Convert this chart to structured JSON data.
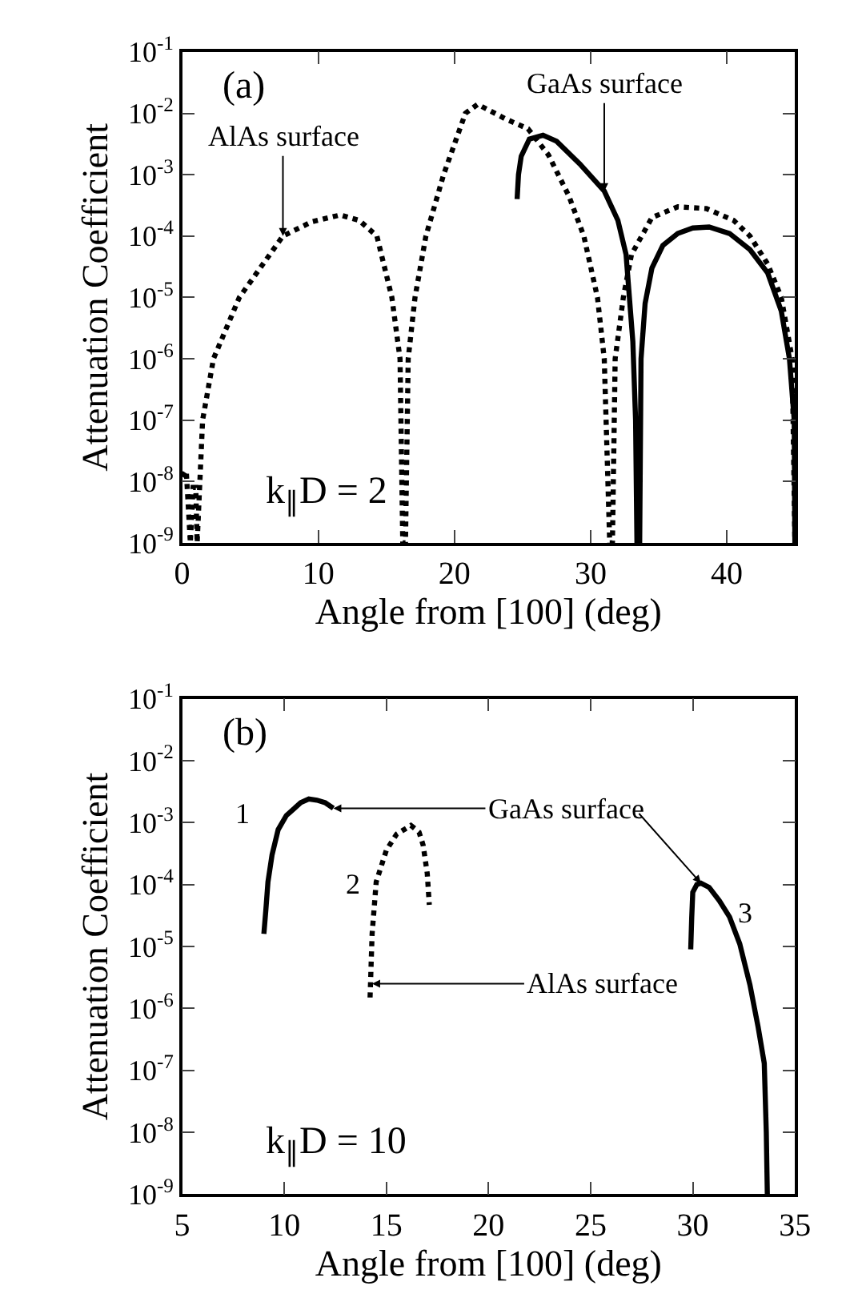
{
  "chart_data": [
    {
      "type": "line",
      "xlabel": "Angle from [100] (deg)",
      "ylabel": "Attenuation Coefficient",
      "log": "y",
      "xlim": [
        0,
        45
      ],
      "xticks": [
        0,
        10,
        20,
        30,
        40
      ],
      "ylim": [
        1e-09,
        0.1
      ],
      "yticks": [
        {
          "value": 1e-09,
          "label": "10$^{-9}$"
        },
        {
          "value": 1e-08,
          "label": "10$^{-8}$"
        },
        {
          "value": 1e-07,
          "label": "10$^{-7}$"
        },
        {
          "value": 1e-06,
          "label": "10$^{-6}$"
        },
        {
          "value": 1e-05,
          "label": "10$^{-5}$"
        },
        {
          "value": 0.0001,
          "label": "10$^{-4}$"
        },
        {
          "value": 0.001,
          "label": "10$^{-3}$"
        },
        {
          "value": 0.01,
          "label": "10$^{-2}$"
        },
        {
          "value": 0.1,
          "label": "10$^{-1}$"
        }
      ],
      "grid": false,
      "series": [
        {
          "color": "#000000",
          "line_style": "dotted",
          "x": [
            0,
            0.3,
            0.6,
            0.8,
            1.0,
            1.1,
            1.3,
            1.5,
            2.3,
            4.2,
            7.4,
            9.5,
            11.6,
            13.0,
            14.3,
            15.4,
            16.0,
            16.2,
            16.4,
            16.6,
            17.1,
            17.9,
            19.2,
            20.8,
            21.7,
            23.8,
            25.4,
            26.9,
            28.4,
            29.5,
            30.5,
            31.0,
            31.4,
            31.6,
            31.8,
            32.4,
            33.0,
            34.5,
            36.4,
            38.5,
            40.5,
            41.7,
            43.0,
            44.0,
            44.8,
            45.0
          ],
          "values": [
            1.2e-08,
            1.5e-08,
            1e-09,
            8e-09,
            8e-09,
            1e-09,
            1e-08,
            1e-07,
            1e-06,
            1e-05,
            0.0001,
            0.00017,
            0.00022,
            0.00018,
            0.0001,
            1e-05,
            1e-06,
            1e-09,
            1e-09,
            1e-06,
            1e-05,
            0.0001,
            0.001,
            0.01,
            0.014,
            0.008,
            0.0056,
            0.0021,
            0.00045,
            0.0001,
            1e-05,
            1e-06,
            1e-09,
            1e-09,
            1e-06,
            1e-05,
            5e-05,
            0.0002,
            0.0003,
            0.00028,
            0.00018,
            0.0001,
            3.5e-05,
            1e-05,
            1e-06,
            1e-09
          ]
        },
        {
          "color": "#000000",
          "line_style": "solid",
          "x": [
            24.6,
            24.7,
            24.9,
            25.5,
            26.5,
            27.5,
            29.2,
            31.0,
            32.0,
            32.6,
            33.1,
            33.3,
            33.4,
            33.6,
            33.7,
            34.0,
            34.5,
            35.3,
            36.4,
            37.5,
            38.7,
            40.2,
            41.7,
            43.0,
            44.0,
            44.6,
            44.95,
            45.0
          ],
          "values": [
            0.0004,
            0.001,
            0.002,
            0.0038,
            0.0044,
            0.0035,
            0.0015,
            0.00054,
            0.00018,
            5e-05,
            1.9e-06,
            1e-07,
            1e-09,
            1e-09,
            1e-06,
            8e-06,
            3e-05,
            7e-05,
            0.00011,
            0.000135,
            0.00014,
            0.00011,
            6e-05,
            2.5e-05,
            6e-06,
            1e-06,
            1e-07,
            1e-09
          ]
        }
      ],
      "annotations": [
        "(a)",
        {
          "text": "AlAs surface",
          "x": 7.4,
          "y": 0.0001
        },
        {
          "text": "GaAs surface",
          "x": 31.0,
          "y": 0.00054
        },
        "k$_{∥}$D = 2"
      ]
    },
    {
      "type": "line",
      "xlabel": "Angle from [100] (deg)",
      "ylabel": "Attenuation Coefficient",
      "log": "y",
      "xlim": [
        5,
        35
      ],
      "xticks": [
        5,
        10,
        15,
        20,
        25,
        30,
        35
      ],
      "ylim": [
        1e-09,
        0.1
      ],
      "yticks": [
        {
          "value": 1e-09,
          "label": "10$^{-9}$"
        },
        {
          "value": 1e-08,
          "label": "10$^{-8}$"
        },
        {
          "value": 1e-07,
          "label": "10$^{-7}$"
        },
        {
          "value": 1e-06,
          "label": "10$^{-6}$"
        },
        {
          "value": 1e-05,
          "label": "10$^{-5}$"
        },
        {
          "value": 0.0001,
          "label": "10$^{-4}$"
        },
        {
          "value": 0.001,
          "label": "10$^{-3}$"
        },
        {
          "value": 0.01,
          "label": "10$^{-2}$"
        },
        {
          "value": 0.1,
          "label": "10$^{-1}$"
        }
      ],
      "grid": false,
      "series": [
        {
          "color": "#000000",
          "line_style": "solid",
          "x": [
            9.0,
            9.1,
            9.2,
            9.4,
            9.7,
            10.1,
            10.5,
            10.8,
            11.2,
            11.6,
            12.0,
            12.4
          ],
          "values": [
            1.6e-05,
            4e-05,
            0.00011,
            0.0003,
            0.00077,
            0.0013,
            0.0017,
            0.0021,
            0.0024,
            0.0023,
            0.0021,
            0.0017
          ]
        },
        {
          "color": "#000000",
          "line_style": "dotted",
          "x": [
            14.2,
            14.25,
            14.3,
            14.5,
            15.0,
            15.5,
            16.2,
            16.6,
            16.8,
            17.0,
            17.1
          ],
          "values": [
            1.5e-06,
            5e-06,
            1.6e-05,
            0.00011,
            0.00036,
            0.00065,
            0.0009,
            0.0007,
            0.00043,
            0.00015,
            4.7e-05
          ]
        },
        {
          "color": "#000000",
          "line_style": "solid",
          "x": [
            29.9,
            29.95,
            30.0,
            30.2,
            30.4,
            30.8,
            31.3,
            31.8,
            32.3,
            32.8,
            33.2,
            33.5,
            33.6,
            33.65
          ],
          "values": [
            9e-06,
            3e-05,
            7.5e-05,
            0.0001,
            0.000105,
            9e-05,
            5.5e-05,
            3e-05,
            1.1e-05,
            2.4e-06,
            5e-07,
            1.3e-07,
            1e-08,
            1e-09
          ]
        }
      ],
      "annotations": [
        "(b)",
        {
          "text": "1",
          "x": 9.7,
          "y": 0.00077
        },
        {
          "text": "2",
          "x": 14.3,
          "y": 0.0001
        },
        {
          "text": "3",
          "x": 31.3,
          "y": 5.5e-05
        },
        {
          "text": "GaAs surface",
          "x": 12.4,
          "y": 0.0017
        },
        {
          "text": "AlAs surface",
          "x": 14.3,
          "y": 2.5e-06
        },
        "k$_{∥}$D = 10"
      ]
    }
  ]
}
